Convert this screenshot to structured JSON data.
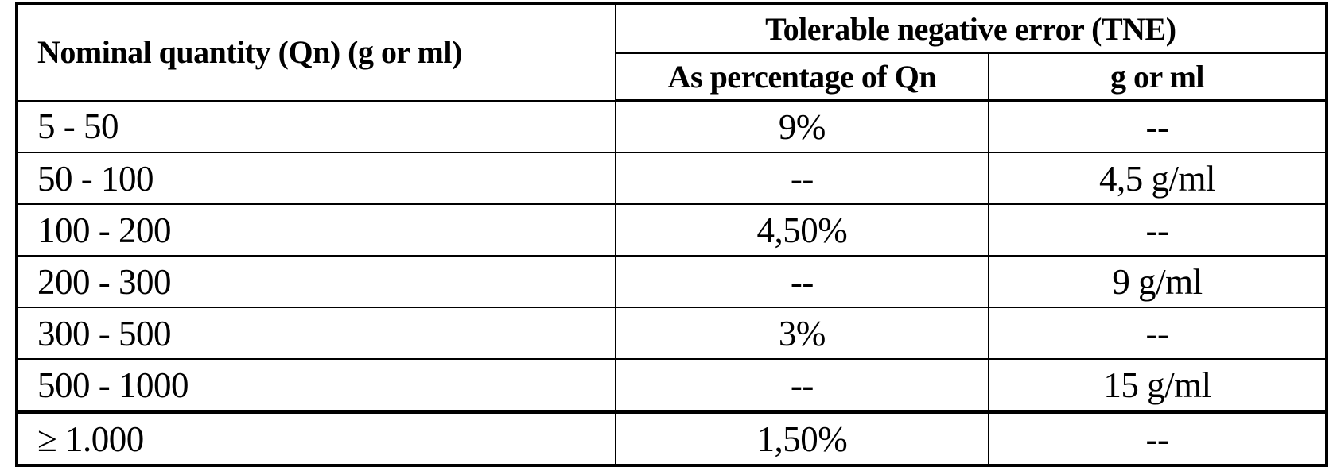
{
  "table": {
    "col1_header": "Nominal quantity (Qn) (g or ml)",
    "tne_header": "Tolerable negative error (TNE)",
    "subheaders": {
      "percentage": "As percentage of Qn",
      "g_or_ml": "g or ml"
    },
    "rows": [
      {
        "qn": "5 - 50",
        "pct": "9%",
        "gml": "--"
      },
      {
        "qn": "50 - 100",
        "pct": "--",
        "gml": "4,5 g/ml"
      },
      {
        "qn": "100 - 200",
        "pct": "4,50%",
        "gml": "--"
      },
      {
        "qn": "200 - 300",
        "pct": "--",
        "gml": "9 g/ml"
      },
      {
        "qn": "300 - 500",
        "pct": "3%",
        "gml": "--"
      },
      {
        "qn": "500 - 1000",
        "pct": "--",
        "gml": "15 g/ml"
      },
      {
        "qn": "≥ 1.000",
        "pct": "1,50%",
        "gml": "--"
      }
    ]
  },
  "colors": {
    "text": "#000000",
    "border": "#000000",
    "background": "#ffffff"
  },
  "chart_data": {
    "type": "table",
    "title": "Tolerable negative error (TNE)",
    "columns": [
      "Nominal quantity (Qn) (g or ml)",
      "As percentage of Qn",
      "g or ml"
    ],
    "rows": [
      [
        "5 - 50",
        "9%",
        "--"
      ],
      [
        "50 - 100",
        "--",
        "4,5 g/ml"
      ],
      [
        "100 - 200",
        "4,50%",
        "--"
      ],
      [
        "200 - 300",
        "--",
        "9 g/ml"
      ],
      [
        "300 - 500",
        "3%",
        "--"
      ],
      [
        "500 - 1000",
        "--",
        "15 g/ml"
      ],
      [
        "≥ 1.000",
        "1,50%",
        "--"
      ]
    ]
  }
}
